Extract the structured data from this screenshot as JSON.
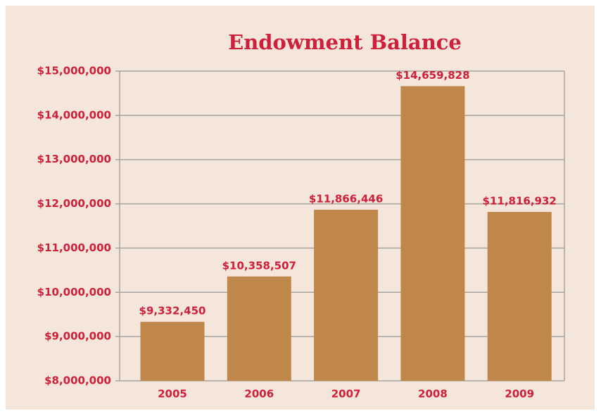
{
  "chart_data": {
    "type": "bar",
    "title": "Endowment Balance",
    "categories": [
      "2005",
      "2006",
      "2007",
      "2008",
      "2009"
    ],
    "values": [
      9332450,
      10358507,
      11866446,
      14659828,
      11816932
    ],
    "value_labels": [
      "$9,332,450",
      "$10,358,507",
      "$11,866,446",
      "$14,659,828",
      "$11,816,932"
    ],
    "color": "#c0874b",
    "ylim": [
      8000000,
      15000000
    ],
    "yticks": [
      {
        "value": 8000000,
        "label": "$8,000,000"
      },
      {
        "value": 9000000,
        "label": "$9,000,000"
      },
      {
        "value": 10000000,
        "label": "$10,000,000"
      },
      {
        "value": 11000000,
        "label": "$11,000,000"
      },
      {
        "value": 12000000,
        "label": "$12,000,000"
      },
      {
        "value": 13000000,
        "label": "$13,000,000"
      },
      {
        "value": 14000000,
        "label": "$14,000,000"
      },
      {
        "value": 15000000,
        "label": "$15,000,000"
      }
    ],
    "grid": true
  }
}
